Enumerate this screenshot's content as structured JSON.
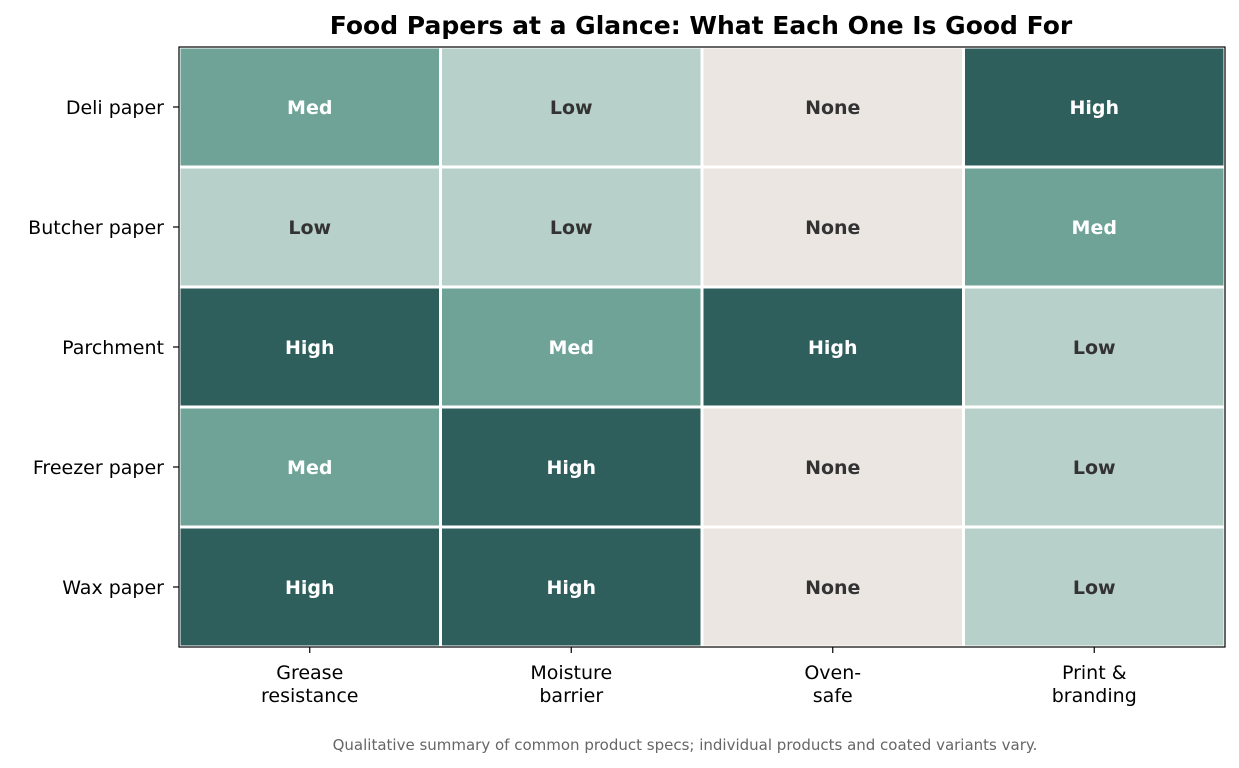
{
  "chart_data": {
    "type": "heatmap",
    "title": "Food Papers at a Glance: What Each One Is Good For",
    "xlabel": "",
    "ylabel": "",
    "rows": [
      "Deli paper",
      "Butcher paper",
      "Parchment",
      "Freezer paper",
      "Wax paper"
    ],
    "columns": [
      [
        "Grease",
        "resistance"
      ],
      [
        "Moisture",
        "barrier"
      ],
      [
        "Oven-",
        "safe"
      ],
      [
        "Print &",
        "branding"
      ]
    ],
    "values": [
      [
        "Med",
        "Low",
        "None",
        "High"
      ],
      [
        "Low",
        "Low",
        "None",
        "Med"
      ],
      [
        "High",
        "Med",
        "High",
        "Low"
      ],
      [
        "Med",
        "High",
        "None",
        "Low"
      ],
      [
        "High",
        "High",
        "None",
        "Low"
      ]
    ],
    "level_colors": {
      "None": "#ebe6e1",
      "Low": "#b7d0c9",
      "Med": "#6fa397",
      "High": "#2e5f5c"
    },
    "label_colors": {
      "None": "#333333",
      "Low": "#333333",
      "Med": "#ffffff",
      "High": "#ffffff"
    },
    "grid": false,
    "legend": "none"
  },
  "footnote": "Qualitative summary of common product specs; individual products and coated variants vary."
}
